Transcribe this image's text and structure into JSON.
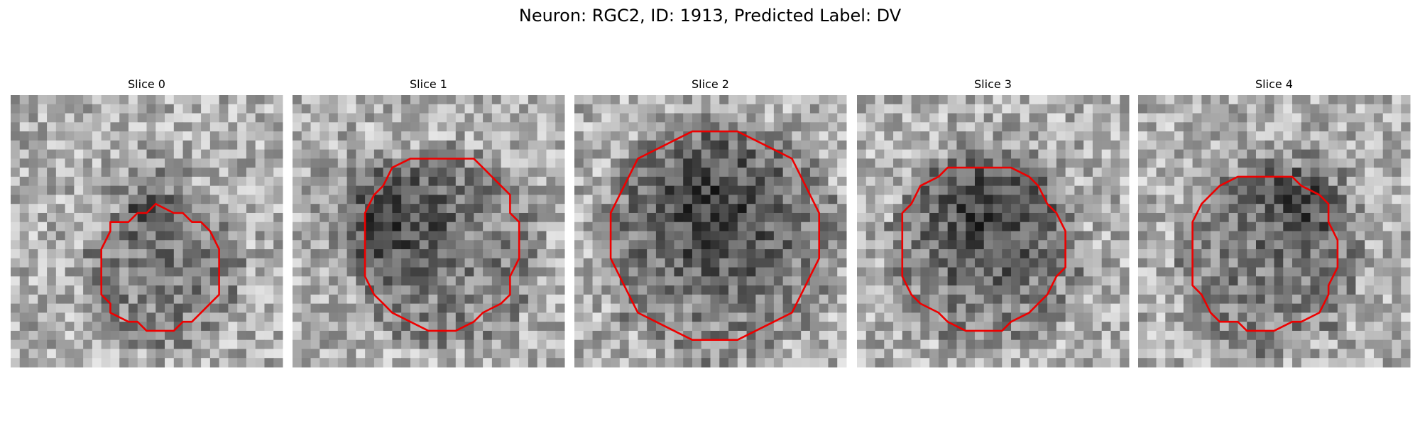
{
  "title": "Neuron: RGC2, ID: 1913, Predicted Label: DV",
  "panels": [
    {
      "title": "Slice 0"
    },
    {
      "title": "Slice 1"
    },
    {
      "title": "Slice 2"
    },
    {
      "title": "Slice 3"
    },
    {
      "title": "Slice 4"
    }
  ]
}
